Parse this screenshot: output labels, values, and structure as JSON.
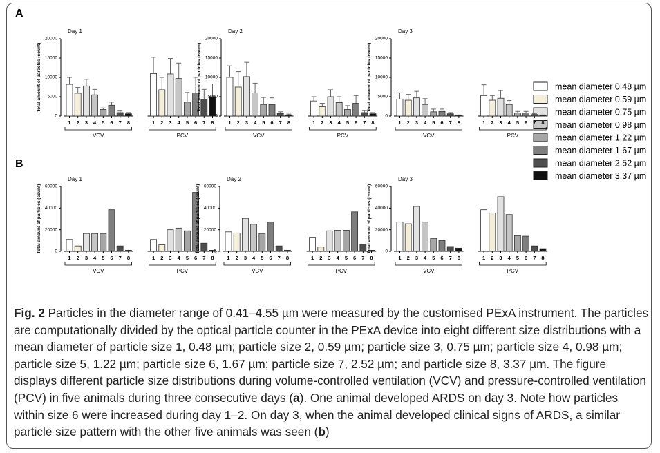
{
  "panels": [
    "A",
    "B"
  ],
  "legend": [
    {
      "name": "mean diameter 0.48 µm",
      "color": "#ffffff"
    },
    {
      "name": "mean diameter 0.59 µm",
      "color": "#f4efdb"
    },
    {
      "name": "mean diameter 0.75 µm",
      "color": "#e2e2e2"
    },
    {
      "name": "mean diameter 0.98 µm",
      "color": "#c6c6c6"
    },
    {
      "name": "mean diameter 1.22 µm",
      "color": "#a6a6a6"
    },
    {
      "name": "mean diameter 1.67 µm",
      "color": "#7e7e7e"
    },
    {
      "name": "mean diameter 2.52 µm",
      "color": "#4e4e4e"
    },
    {
      "name": "mean diameter 3.37 µm",
      "color": "#111111"
    }
  ],
  "chart_data": [
    {
      "type": "bar",
      "title": "Day 1",
      "y_label": "Total amount of particles (count)",
      "ylim": [
        0,
        20000
      ],
      "yticks": [
        0,
        5000,
        10000,
        15000,
        20000
      ],
      "groups": [
        {
          "name": "VCV",
          "categories": [
            "1",
            "2",
            "3",
            "4",
            "5",
            "6",
            "7",
            "8"
          ],
          "values": [
            8200,
            5900,
            7800,
            5500,
            1700,
            2800,
            900,
            600
          ],
          "errors": [
            1800,
            1500,
            1700,
            1400,
            400,
            800,
            400,
            300
          ]
        },
        {
          "name": "PCV",
          "categories": [
            "1",
            "2",
            "3",
            "4",
            "5",
            "6",
            "7",
            "8"
          ],
          "values": [
            11000,
            6800,
            10900,
            9700,
            3600,
            6000,
            4400,
            5000
          ],
          "errors": [
            4200,
            3200,
            4000,
            4000,
            2500,
            4000,
            2500,
            3300
          ]
        }
      ]
    },
    {
      "type": "bar",
      "title": "Day 2",
      "y_label": "Total amount of particles (count)",
      "ylim": [
        0,
        20000
      ],
      "yticks": [
        0,
        5000,
        10000,
        15000,
        20000
      ],
      "groups": [
        {
          "name": "VCV",
          "categories": [
            "1",
            "2",
            "3",
            "4",
            "5",
            "6",
            "7",
            "8"
          ],
          "values": [
            10000,
            7500,
            10200,
            6000,
            3000,
            3000,
            700,
            300
          ],
          "errors": [
            3000,
            4000,
            3700,
            2500,
            1800,
            1700,
            400,
            200
          ]
        },
        {
          "name": "PCV",
          "categories": [
            "1",
            "2",
            "3",
            "4",
            "5",
            "6",
            "7",
            "8"
          ],
          "values": [
            3900,
            2400,
            5000,
            3500,
            1700,
            3300,
            900,
            600
          ],
          "errors": [
            1100,
            900,
            1800,
            1500,
            1000,
            2000,
            500,
            300
          ]
        }
      ]
    },
    {
      "type": "bar",
      "title": "Day 3",
      "y_label": "Total amount of particles (count)",
      "ylim": [
        0,
        20000
      ],
      "yticks": [
        0,
        5000,
        10000,
        15000,
        20000
      ],
      "groups": [
        {
          "name": "VCV",
          "categories": [
            "1",
            "2",
            "3",
            "4",
            "5",
            "6",
            "7",
            "8"
          ],
          "values": [
            4400,
            4100,
            4700,
            3000,
            1100,
            1200,
            600,
            200
          ],
          "errors": [
            1600,
            1500,
            1700,
            1500,
            700,
            600,
            300,
            100
          ]
        },
        {
          "name": "PCV",
          "categories": [
            "1",
            "2",
            "3",
            "4",
            "5",
            "6",
            "7",
            "8"
          ],
          "values": [
            5300,
            4100,
            4600,
            3000,
            800,
            800,
            400,
            200
          ],
          "errors": [
            2800,
            1200,
            2000,
            1000,
            400,
            400,
            200,
            100
          ]
        }
      ]
    },
    {
      "type": "bar",
      "title": "Day 1",
      "y_label": "Total amount of particles (count)",
      "ylim": [
        0,
        60000
      ],
      "yticks": [
        0,
        20000,
        40000,
        60000
      ],
      "groups": [
        {
          "name": "VCV",
          "categories": [
            "1",
            "2",
            "3",
            "4",
            "5",
            "6",
            "7",
            "8"
          ],
          "values": [
            11000,
            5000,
            16500,
            16500,
            16500,
            38500,
            5000,
            1000
          ]
        },
        {
          "name": "PCV",
          "categories": [
            "1",
            "2",
            "3",
            "4",
            "5",
            "6",
            "7",
            "8"
          ],
          "values": [
            11000,
            6000,
            20000,
            21500,
            19000,
            54500,
            7500,
            1000
          ]
        }
      ]
    },
    {
      "type": "bar",
      "title": "Day 2",
      "y_label": "Total amount of particles (count)",
      "ylim": [
        0,
        60000
      ],
      "yticks": [
        0,
        20000,
        40000,
        60000
      ],
      "groups": [
        {
          "name": "VCV",
          "categories": [
            "1",
            "2",
            "3",
            "4",
            "5",
            "6",
            "7",
            "8"
          ],
          "values": [
            18000,
            17000,
            30500,
            25000,
            16500,
            27000,
            5000,
            1000
          ]
        },
        {
          "name": "PCV",
          "categories": [
            "1",
            "2",
            "3",
            "4",
            "5",
            "6",
            "7",
            "8"
          ],
          "values": [
            13000,
            4000,
            19000,
            19500,
            19500,
            36500,
            6500,
            1000
          ]
        }
      ]
    },
    {
      "type": "bar",
      "title": "Day 3",
      "y_label": "Total amount of particles (count)",
      "ylim": [
        0,
        60000
      ],
      "yticks": [
        0,
        20000,
        40000,
        60000
      ],
      "groups": [
        {
          "name": "VCV",
          "categories": [
            "1",
            "2",
            "3",
            "4",
            "5",
            "6",
            "7",
            "8"
          ],
          "values": [
            27000,
            25500,
            41500,
            27000,
            12000,
            10000,
            4500,
            3000
          ]
        },
        {
          "name": "PCV",
          "categories": [
            "1",
            "2",
            "3",
            "4",
            "5",
            "6",
            "7",
            "8"
          ],
          "values": [
            38500,
            35500,
            50500,
            34000,
            14500,
            14000,
            5000,
            2500
          ]
        }
      ]
    }
  ],
  "caption": {
    "label": "Fig. 2",
    "parts": [
      " Particles in the diameter range of 0.41–4.55 µm were measured by the customised PExA instrument. The particles are computationally divided by the optical particle counter in the PExA device into eight different size distributions with a mean diameter of particle size 1, 0.48 µm; particle size 2, 0.59 µm; particle size 3, 0.75 µm; particle size 4, 0.98 µm; particle size 5, 1.22 µm; particle size 6, 1.67 µm; particle size 7, 2.52 µm; and particle size 8, 3.37 µm. The figure displays different particle size distributions during volume-controlled ventilation (VCV) and pressure-controlled ventilation (PCV) in five animals during three consecutive days (",
      "a",
      "). One animal developed ARDS on day 3. Note how particles within size 6 were increased during day 1–2. On day 3, when the animal developed clinical signs of ARDS, a similar particle size pattern with the other five animals was seen (",
      "b",
      ")"
    ]
  }
}
